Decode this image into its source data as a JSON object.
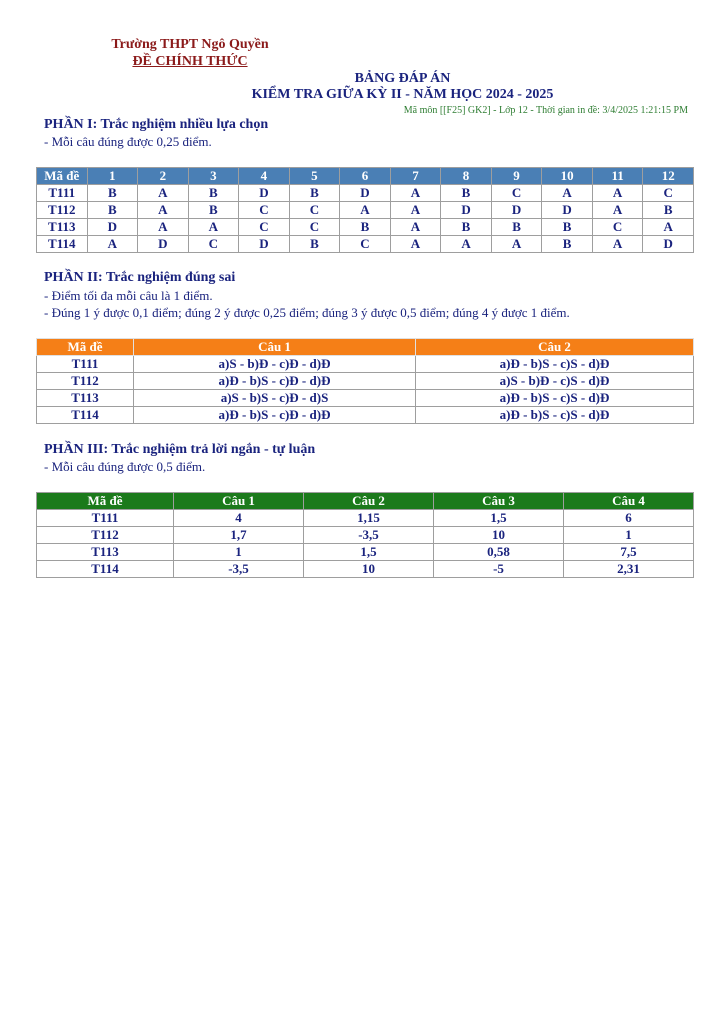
{
  "header": {
    "school": "Trường THPT Ngô Quyền",
    "official": "ĐỀ CHÍNH THỨC",
    "title": "BẢNG ĐÁP ÁN",
    "subtitle": "KIỂM TRA GIỮA KỲ II - NĂM HỌC 2024 - 2025",
    "meta": "Mã môn [[F25] GK2] - Lớp 12 - Thời gian in đề: 3/4/2025 1:21:15 PM"
  },
  "part1": {
    "title": "PHẦN I: Trắc nghiệm nhiều lựa chọn",
    "notes": [
      "- Mỗi câu đúng được 0,25 điểm."
    ],
    "header_color": "#4a7fb5",
    "columns": [
      "Mã đề",
      "1",
      "2",
      "3",
      "4",
      "5",
      "6",
      "7",
      "8",
      "9",
      "10",
      "11",
      "12"
    ],
    "rows": [
      [
        "T111",
        "B",
        "A",
        "B",
        "D",
        "B",
        "D",
        "A",
        "B",
        "C",
        "A",
        "A",
        "C"
      ],
      [
        "T112",
        "B",
        "A",
        "B",
        "C",
        "C",
        "A",
        "A",
        "D",
        "D",
        "D",
        "A",
        "B"
      ],
      [
        "T113",
        "D",
        "A",
        "A",
        "C",
        "C",
        "B",
        "A",
        "B",
        "B",
        "B",
        "C",
        "A"
      ],
      [
        "T114",
        "A",
        "D",
        "C",
        "D",
        "B",
        "C",
        "A",
        "A",
        "A",
        "B",
        "A",
        "D"
      ]
    ]
  },
  "part2": {
    "title": "PHẦN II: Trắc nghiệm đúng sai",
    "notes": [
      "- Điểm tối đa mỗi câu là 1 điểm.",
      "- Đúng 1 ý được 0,1 điểm; đúng 2 ý được 0,25 điểm; đúng 3 ý được 0,5 điểm; đúng 4 ý được 1 điểm."
    ],
    "header_color": "#f57f17",
    "columns": [
      "Mã đề",
      "Câu 1",
      "Câu 2"
    ],
    "rows": [
      [
        "T111",
        "a)S - b)Đ - c)Đ - d)Đ",
        "a)Đ - b)S - c)S - d)Đ"
      ],
      [
        "T112",
        "a)Đ - b)S - c)Đ - d)Đ",
        "a)S - b)Đ - c)S - d)Đ"
      ],
      [
        "T113",
        "a)S - b)S - c)Đ - d)S",
        "a)Đ - b)S - c)S - d)Đ"
      ],
      [
        "T114",
        "a)Đ - b)S - c)Đ - d)Đ",
        "a)Đ - b)S - c)S - d)Đ"
      ]
    ]
  },
  "part3": {
    "title": "PHẦN III: Trắc nghiệm trả lời ngắn - tự luận",
    "notes": [
      "- Mỗi câu đúng được 0,5 điểm."
    ],
    "header_color": "#1b7a1b",
    "columns": [
      "Mã đề",
      "Câu 1",
      "Câu 2",
      "Câu 3",
      "Câu 4"
    ],
    "rows": [
      [
        "T111",
        "4",
        "1,15",
        "1,5",
        "6"
      ],
      [
        "T112",
        "1,7",
        "-3,5",
        "10",
        "1"
      ],
      [
        "T113",
        "1",
        "1,5",
        "0,58",
        "7,5"
      ],
      [
        "T114",
        "-3,5",
        "10",
        "-5",
        "2,31"
      ]
    ]
  }
}
